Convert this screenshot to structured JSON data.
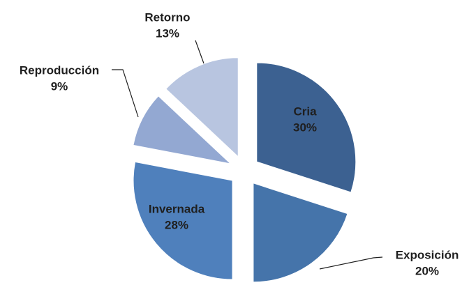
{
  "chart_data": {
    "type": "pie",
    "categories": [
      "Cria",
      "Exposición",
      "Invernada",
      "Reproducción",
      "Retorno"
    ],
    "values": [
      30,
      20,
      28,
      9,
      13
    ],
    "value_labels": [
      "30%",
      "20%",
      "28%",
      "9%",
      "13%"
    ],
    "colors": [
      "#3c6191",
      "#4574aa",
      "#4f80bc",
      "#93a8d2",
      "#b8c5e0"
    ]
  }
}
